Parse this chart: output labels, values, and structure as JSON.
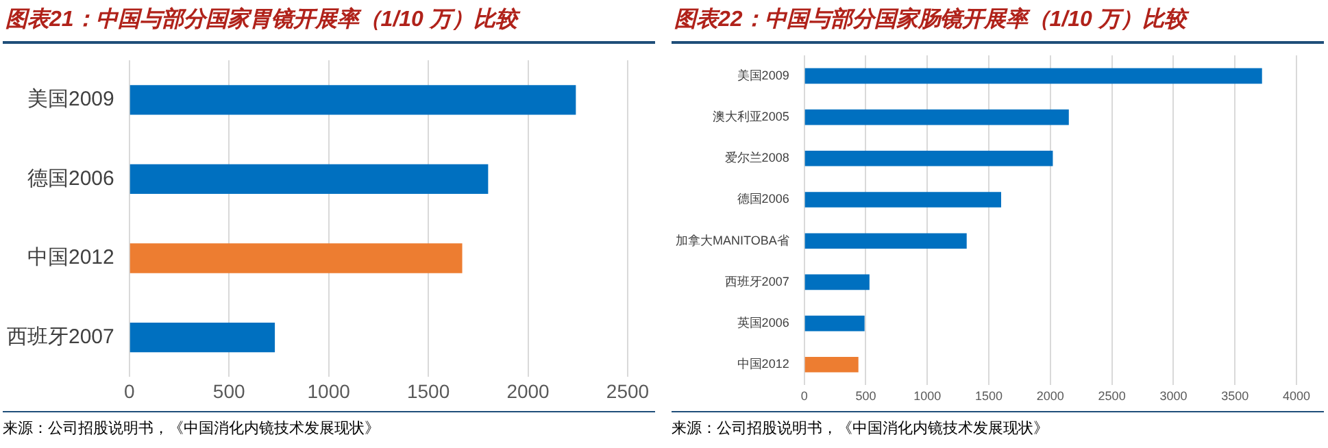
{
  "chart_data": [
    {
      "type": "bar",
      "orientation": "horizontal",
      "title": "图表21：中国与部分国家胃镜开展率（1/10 万）比较",
      "categories": [
        "美国2009",
        "德国2006",
        "中国2012",
        "西班牙2007"
      ],
      "values": [
        2240,
        1800,
        1670,
        730
      ],
      "colors": [
        "#0070c0",
        "#0070c0",
        "#ed7d31",
        "#0070c0"
      ],
      "xlim": [
        0,
        2500
      ],
      "xticks": [
        0,
        500,
        1000,
        1500,
        2000,
        2500
      ],
      "grid": "x",
      "legend": false,
      "annotations": [
        "来源：公司招股说明书，《中国消化内镜技术发展现状》"
      ]
    },
    {
      "type": "bar",
      "orientation": "horizontal",
      "title": "图表22：中国与部分国家肠镜开展率（1/10 万）比较",
      "categories": [
        "美国2009",
        "澳大利亚2005",
        "爱尔兰2008",
        "德国2006",
        "加拿大MANITOBA省",
        "西班牙2007",
        "英国2006",
        "中国2012"
      ],
      "values": [
        3720,
        2150,
        2020,
        1600,
        1320,
        530,
        490,
        440
      ],
      "colors": [
        "#0070c0",
        "#0070c0",
        "#0070c0",
        "#0070c0",
        "#0070c0",
        "#0070c0",
        "#0070c0",
        "#ed7d31"
      ],
      "xlim": [
        0,
        4000
      ],
      "xticks": [
        0,
        500,
        1000,
        1500,
        2000,
        2500,
        3000,
        3500,
        4000
      ],
      "grid": "x",
      "legend": false,
      "annotations": [
        "来源：公司招股说明书，《中国消化内镜技术发展现状》"
      ]
    }
  ]
}
